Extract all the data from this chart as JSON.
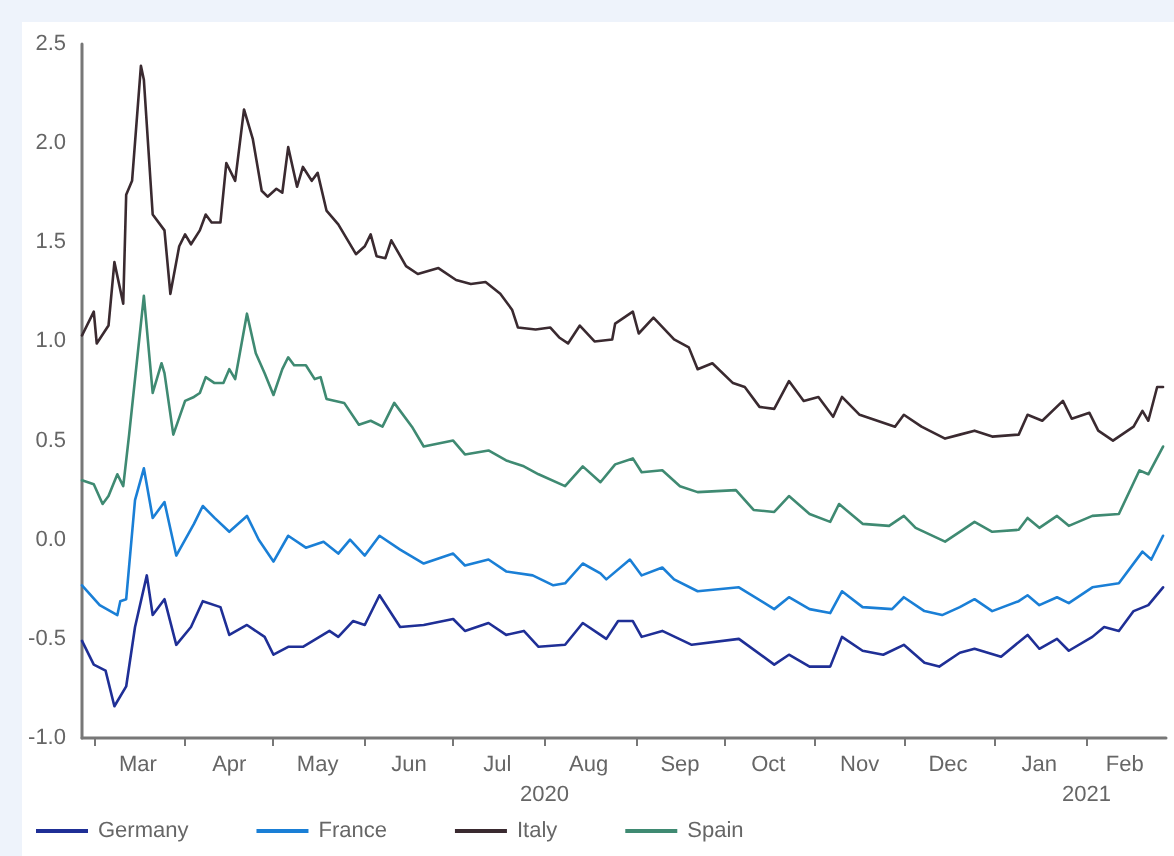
{
  "chart_data": {
    "type": "line",
    "xlim": [
      "2020-02-26",
      "2021-02-28"
    ],
    "ylim": [
      -1.0,
      2.5
    ],
    "yticks": [
      {
        "value": -1,
        "label": "-1.0"
      },
      {
        "value": -0.5,
        "label": "-0.5"
      },
      {
        "value": 0,
        "label": "0.0"
      },
      {
        "value": 0.5,
        "label": "0.5"
      },
      {
        "value": 1,
        "label": "1.0"
      },
      {
        "value": 1.5,
        "label": "1.5"
      },
      {
        "value": 2,
        "label": "2.0"
      },
      {
        "value": 2.5,
        "label": "2.5"
      }
    ],
    "xticks": [
      {
        "value": "2020-03-01",
        "label": null
      },
      {
        "value": "2020-03-16",
        "label": "Mar"
      },
      {
        "value": "2020-04-01",
        "label": null
      },
      {
        "value": "2020-04-16",
        "label": "Apr"
      },
      {
        "value": "2020-05-01",
        "label": null
      },
      {
        "value": "2020-05-16",
        "label": "May"
      },
      {
        "value": "2020-06-01",
        "label": null
      },
      {
        "value": "2020-06-16",
        "label": "Jun"
      },
      {
        "value": "2020-07-01",
        "label": null
      },
      {
        "value": "2020-07-16",
        "label": "Jul"
      },
      {
        "value": "2020-08-01",
        "label": null
      },
      {
        "value": "2020-08-16",
        "label": "Aug"
      },
      {
        "value": "2020-09-01",
        "label": null
      },
      {
        "value": "2020-09-16",
        "label": "Sep"
      },
      {
        "value": "2020-10-01",
        "label": null
      },
      {
        "value": "2020-10-16",
        "label": "Oct"
      },
      {
        "value": "2020-11-01",
        "label": null
      },
      {
        "value": "2020-11-16",
        "label": "Nov"
      },
      {
        "value": "2020-12-01",
        "label": null
      },
      {
        "value": "2020-12-16",
        "label": "Dec"
      },
      {
        "value": "2021-01-01",
        "label": null
      },
      {
        "value": "2021-01-16",
        "label": "Jan"
      },
      {
        "value": "2021-02-01",
        "label": null
      },
      {
        "value": "2021-02-14",
        "label": "Feb"
      }
    ],
    "x2lim": [
      "2020-02-26",
      "2021-02-28"
    ],
    "x2ticks": [
      {
        "value": "2020-08-01",
        "label": "2020"
      },
      {
        "value": "2021-02-01",
        "label": "2021"
      }
    ],
    "grid": false,
    "legend": "bottom left",
    "marker": "none",
    "line_style": "solid",
    "series": [
      {
        "name": "Germany",
        "color": "#1f2f96",
        "x": [
          "2020-02-26",
          "2020-03-01",
          "2020-03-05",
          "2020-03-08",
          "2020-03-12",
          "2020-03-15",
          "2020-03-19",
          "2020-03-21",
          "2020-03-25",
          "2020-03-29",
          "2020-04-03",
          "2020-04-07",
          "2020-04-13",
          "2020-04-16",
          "2020-04-22",
          "2020-04-28",
          "2020-05-01",
          "2020-05-06",
          "2020-05-11",
          "2020-05-20",
          "2020-05-23",
          "2020-05-28",
          "2020-06-01",
          "2020-06-06",
          "2020-06-13",
          "2020-06-21",
          "2020-07-01",
          "2020-07-05",
          "2020-07-13",
          "2020-07-19",
          "2020-07-25",
          "2020-07-30",
          "2020-08-08",
          "2020-08-14",
          "2020-08-20",
          "2020-08-22",
          "2020-08-26",
          "2020-08-31",
          "2020-09-03",
          "2020-09-10",
          "2020-09-20",
          "2020-10-06",
          "2020-10-18",
          "2020-10-23",
          "2020-10-30",
          "2020-11-06",
          "2020-11-10",
          "2020-11-17",
          "2020-11-24",
          "2020-12-01",
          "2020-12-08",
          "2020-12-13",
          "2020-12-20",
          "2020-12-25",
          "2021-01-03",
          "2021-01-12",
          "2021-01-16",
          "2021-01-22",
          "2021-01-26",
          "2021-02-03",
          "2021-02-07",
          "2021-02-12",
          "2021-02-17",
          "2021-02-22",
          "2021-02-27"
        ],
        "values": [
          -0.51,
          -0.63,
          -0.66,
          -0.84,
          -0.74,
          -0.44,
          -0.18,
          -0.38,
          -0.3,
          -0.53,
          -0.44,
          -0.31,
          -0.34,
          -0.48,
          -0.43,
          -0.49,
          -0.58,
          -0.54,
          -0.54,
          -0.46,
          -0.49,
          -0.41,
          -0.43,
          -0.28,
          -0.44,
          -0.43,
          -0.4,
          -0.46,
          -0.42,
          -0.48,
          -0.46,
          -0.54,
          -0.53,
          -0.42,
          -0.48,
          -0.5,
          -0.41,
          -0.41,
          -0.49,
          -0.46,
          -0.53,
          -0.5,
          -0.63,
          -0.58,
          -0.64,
          -0.64,
          -0.49,
          -0.56,
          -0.58,
          -0.53,
          -0.62,
          -0.64,
          -0.57,
          -0.55,
          -0.59,
          -0.48,
          -0.55,
          -0.5,
          -0.56,
          -0.49,
          -0.44,
          -0.46,
          -0.36,
          -0.33,
          -0.24
        ]
      },
      {
        "name": "France",
        "color": "#1a7fd6",
        "x": [
          "2020-02-26",
          "2020-03-03",
          "2020-03-09",
          "2020-03-10",
          "2020-03-12",
          "2020-03-15",
          "2020-03-18",
          "2020-03-21",
          "2020-03-25",
          "2020-03-29",
          "2020-04-04",
          "2020-04-07",
          "2020-04-11",
          "2020-04-16",
          "2020-04-22",
          "2020-04-26",
          "2020-05-01",
          "2020-05-06",
          "2020-05-12",
          "2020-05-18",
          "2020-05-23",
          "2020-05-27",
          "2020-06-01",
          "2020-06-06",
          "2020-06-13",
          "2020-06-21",
          "2020-07-01",
          "2020-07-05",
          "2020-07-13",
          "2020-07-19",
          "2020-07-28",
          "2020-08-04",
          "2020-08-08",
          "2020-08-14",
          "2020-08-20",
          "2020-08-22",
          "2020-08-30",
          "2020-09-03",
          "2020-09-10",
          "2020-09-14",
          "2020-09-22",
          "2020-10-06",
          "2020-10-18",
          "2020-10-23",
          "2020-10-30",
          "2020-11-06",
          "2020-11-10",
          "2020-11-17",
          "2020-11-27",
          "2020-12-01",
          "2020-12-08",
          "2020-12-14",
          "2020-12-20",
          "2020-12-25",
          "2020-12-31",
          "2021-01-09",
          "2021-01-12",
          "2021-01-16",
          "2021-01-22",
          "2021-01-26",
          "2021-02-03",
          "2021-02-12",
          "2021-02-20",
          "2021-02-23",
          "2021-02-27"
        ],
        "values": [
          -0.23,
          -0.33,
          -0.38,
          -0.31,
          -0.3,
          0.2,
          0.36,
          0.11,
          0.19,
          -0.08,
          0.08,
          0.17,
          0.11,
          0.04,
          0.12,
          0.0,
          -0.11,
          0.02,
          -0.04,
          -0.01,
          -0.07,
          0.0,
          -0.08,
          0.02,
          -0.05,
          -0.12,
          -0.07,
          -0.13,
          -0.1,
          -0.16,
          -0.18,
          -0.23,
          -0.22,
          -0.12,
          -0.17,
          -0.2,
          -0.1,
          -0.18,
          -0.14,
          -0.2,
          -0.26,
          -0.24,
          -0.35,
          -0.29,
          -0.35,
          -0.37,
          -0.26,
          -0.34,
          -0.35,
          -0.29,
          -0.36,
          -0.38,
          -0.34,
          -0.3,
          -0.36,
          -0.31,
          -0.28,
          -0.33,
          -0.29,
          -0.32,
          -0.24,
          -0.22,
          -0.06,
          -0.1,
          0.02
        ]
      },
      {
        "name": "Italy",
        "color": "#3a2a30",
        "x": [
          "2020-02-26",
          "2020-03-01",
          "2020-03-02",
          "2020-03-06",
          "2020-03-08",
          "2020-03-11",
          "2020-03-12",
          "2020-03-14",
          "2020-03-17",
          "2020-03-18",
          "2020-03-21",
          "2020-03-25",
          "2020-03-27",
          "2020-03-30",
          "2020-04-01",
          "2020-04-03",
          "2020-04-06",
          "2020-04-08",
          "2020-04-10",
          "2020-04-13",
          "2020-04-15",
          "2020-04-18",
          "2020-04-21",
          "2020-04-24",
          "2020-04-27",
          "2020-04-29",
          "2020-05-02",
          "2020-05-04",
          "2020-05-06",
          "2020-05-09",
          "2020-05-11",
          "2020-05-14",
          "2020-05-16",
          "2020-05-19",
          "2020-05-23",
          "2020-05-29",
          "2020-06-01",
          "2020-06-03",
          "2020-06-05",
          "2020-06-08",
          "2020-06-10",
          "2020-06-15",
          "2020-06-19",
          "2020-06-26",
          "2020-07-02",
          "2020-07-07",
          "2020-07-12",
          "2020-07-17",
          "2020-07-21",
          "2020-07-23",
          "2020-07-29",
          "2020-08-03",
          "2020-08-06",
          "2020-08-09",
          "2020-08-13",
          "2020-08-18",
          "2020-08-24",
          "2020-08-25",
          "2020-08-31",
          "2020-09-02",
          "2020-09-07",
          "2020-09-14",
          "2020-09-19",
          "2020-09-22",
          "2020-09-27",
          "2020-10-04",
          "2020-10-08",
          "2020-10-13",
          "2020-10-18",
          "2020-10-23",
          "2020-10-28",
          "2020-11-02",
          "2020-11-07",
          "2020-11-10",
          "2020-11-16",
          "2020-11-22",
          "2020-11-28",
          "2020-12-01",
          "2020-12-07",
          "2020-12-15",
          "2020-12-20",
          "2020-12-25",
          "2020-12-31",
          "2021-01-09",
          "2021-01-12",
          "2021-01-17",
          "2021-01-24",
          "2021-01-27",
          "2021-02-02",
          "2021-02-05",
          "2021-02-10",
          "2021-02-17",
          "2021-02-20",
          "2021-02-22",
          "2021-02-25",
          "2021-02-27"
        ],
        "values": [
          1.03,
          1.15,
          0.99,
          1.08,
          1.4,
          1.19,
          1.74,
          1.81,
          2.39,
          2.32,
          1.64,
          1.56,
          1.24,
          1.48,
          1.54,
          1.49,
          1.56,
          1.64,
          1.6,
          1.6,
          1.9,
          1.81,
          2.17,
          2.02,
          1.76,
          1.73,
          1.77,
          1.75,
          1.98,
          1.78,
          1.88,
          1.81,
          1.85,
          1.66,
          1.59,
          1.44,
          1.48,
          1.54,
          1.43,
          1.42,
          1.51,
          1.38,
          1.34,
          1.37,
          1.31,
          1.29,
          1.3,
          1.24,
          1.16,
          1.07,
          1.06,
          1.07,
          1.02,
          0.99,
          1.08,
          1.0,
          1.01,
          1.09,
          1.15,
          1.04,
          1.12,
          1.01,
          0.97,
          0.86,
          0.89,
          0.79,
          0.77,
          0.67,
          0.66,
          0.8,
          0.7,
          0.72,
          0.62,
          0.72,
          0.63,
          0.6,
          0.57,
          0.63,
          0.57,
          0.51,
          0.53,
          0.55,
          0.52,
          0.53,
          0.63,
          0.6,
          0.7,
          0.61,
          0.64,
          0.55,
          0.5,
          0.57,
          0.65,
          0.6,
          0.77,
          0.77
        ]
      },
      {
        "name": "Spain",
        "color": "#3f8a72",
        "x": [
          "2020-02-26",
          "2020-03-01",
          "2020-03-04",
          "2020-03-06",
          "2020-03-09",
          "2020-03-11",
          "2020-03-13",
          "2020-03-18",
          "2020-03-21",
          "2020-03-24",
          "2020-03-25",
          "2020-03-28",
          "2020-04-01",
          "2020-04-04",
          "2020-04-06",
          "2020-04-08",
          "2020-04-11",
          "2020-04-14",
          "2020-04-16",
          "2020-04-18",
          "2020-04-22",
          "2020-04-25",
          "2020-04-28",
          "2020-05-01",
          "2020-05-04",
          "2020-05-06",
          "2020-05-08",
          "2020-05-12",
          "2020-05-15",
          "2020-05-17",
          "2020-05-19",
          "2020-05-25",
          "2020-05-30",
          "2020-06-03",
          "2020-06-07",
          "2020-06-11",
          "2020-06-17",
          "2020-06-21",
          "2020-07-01",
          "2020-07-05",
          "2020-07-13",
          "2020-07-19",
          "2020-07-25",
          "2020-07-30",
          "2020-08-08",
          "2020-08-14",
          "2020-08-20",
          "2020-08-25",
          "2020-08-31",
          "2020-09-03",
          "2020-09-10",
          "2020-09-16",
          "2020-09-22",
          "2020-10-05",
          "2020-10-11",
          "2020-10-18",
          "2020-10-23",
          "2020-10-30",
          "2020-11-06",
          "2020-11-09",
          "2020-11-17",
          "2020-11-26",
          "2020-12-01",
          "2020-12-05",
          "2020-12-15",
          "2020-12-21",
          "2020-12-25",
          "2020-12-31",
          "2021-01-09",
          "2021-01-12",
          "2021-01-16",
          "2021-01-22",
          "2021-01-26",
          "2021-02-03",
          "2021-02-12",
          "2021-02-19",
          "2021-02-22",
          "2021-02-27"
        ],
        "values": [
          0.3,
          0.28,
          0.18,
          0.22,
          0.33,
          0.27,
          0.53,
          1.23,
          0.74,
          0.89,
          0.84,
          0.53,
          0.7,
          0.72,
          0.74,
          0.82,
          0.79,
          0.79,
          0.86,
          0.81,
          1.14,
          0.94,
          0.84,
          0.73,
          0.86,
          0.92,
          0.88,
          0.88,
          0.81,
          0.82,
          0.71,
          0.69,
          0.58,
          0.6,
          0.57,
          0.69,
          0.57,
          0.47,
          0.5,
          0.43,
          0.45,
          0.4,
          0.37,
          0.33,
          0.27,
          0.37,
          0.29,
          0.38,
          0.41,
          0.34,
          0.35,
          0.27,
          0.24,
          0.25,
          0.15,
          0.14,
          0.22,
          0.13,
          0.09,
          0.18,
          0.08,
          0.07,
          0.12,
          0.06,
          -0.01,
          0.05,
          0.09,
          0.04,
          0.05,
          0.11,
          0.06,
          0.12,
          0.07,
          0.12,
          0.13,
          0.35,
          0.33,
          0.47
        ]
      }
    ]
  }
}
